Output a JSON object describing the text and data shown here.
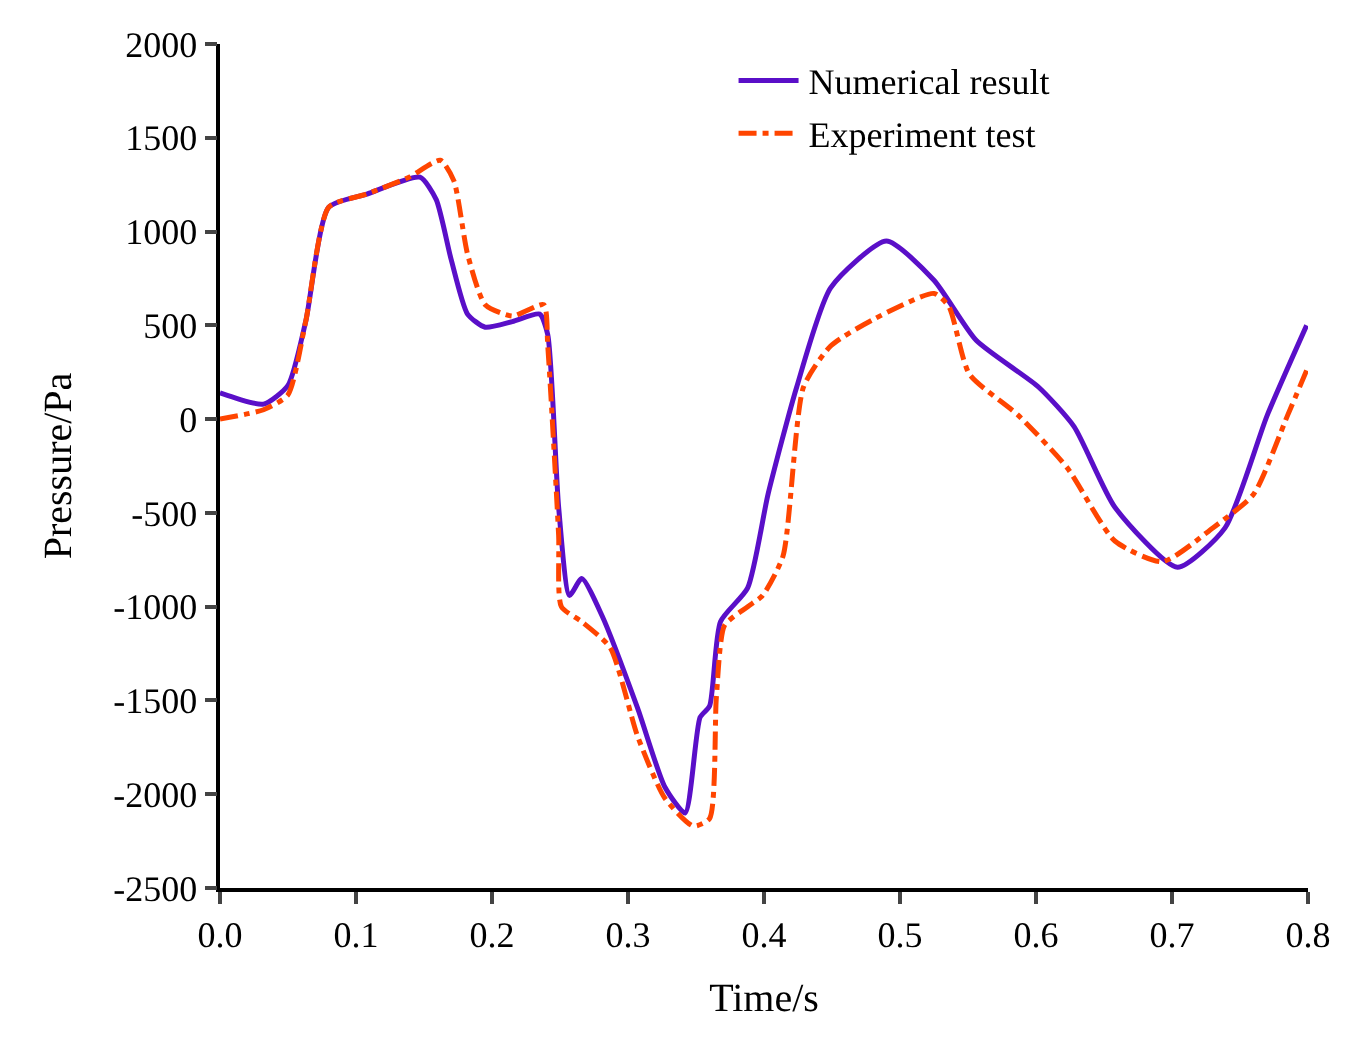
{
  "chart_data": {
    "type": "line",
    "xlabel": "Time/s",
    "ylabel": "Pressure/Pa",
    "xlim": [
      0,
      0.8
    ],
    "xticks": [
      {
        "value": 0,
        "label": "0.0"
      },
      0.1,
      0.2,
      0.3,
      0.4,
      0.5,
      0.6,
      0.7,
      0.8
    ],
    "ylim": [
      -2500,
      2000
    ],
    "yticks": [
      -2500,
      -2000,
      -1500,
      -1000,
      -500,
      0,
      500,
      1000,
      1500,
      2000
    ],
    "legend": "top",
    "marker": "none",
    "series": [
      {
        "name": "Numerical result",
        "color": "#5a0fc8",
        "line_style": "solid",
        "x": [
          0,
          0.032,
          0.05,
          0.063,
          0.08,
          0.108,
          0.147,
          0.159,
          0.17,
          0.182,
          0.195,
          0.215,
          0.235,
          0.241,
          0.249,
          0.257,
          0.266,
          0.281,
          0.307,
          0.327,
          0.342,
          0.353,
          0.36,
          0.368,
          0.388,
          0.403,
          0.424,
          0.449,
          0.49,
          0.525,
          0.556,
          0.602,
          0.628,
          0.658,
          0.704,
          0.739,
          0.77,
          0.799
        ],
        "values": [
          140,
          80,
          180,
          520,
          1130,
          1200,
          1290,
          1170,
          850,
          560,
          490,
          520,
          560,
          450,
          -470,
          -940,
          -850,
          -1050,
          -1540,
          -1960,
          -2100,
          -1590,
          -1530,
          -1080,
          -900,
          -400,
          170,
          700,
          950,
          740,
          420,
          170,
          -40,
          -470,
          -790,
          -580,
          20,
          500
        ]
      },
      {
        "name": "Experiment test",
        "color": "#ff4500",
        "line_style": "dashed",
        "x": [
          0,
          0.032,
          0.05,
          0.063,
          0.08,
          0.108,
          0.139,
          0.162,
          0.172,
          0.182,
          0.195,
          0.215,
          0.238,
          0.241,
          0.249,
          0.251,
          0.266,
          0.287,
          0.307,
          0.327,
          0.348,
          0.36,
          0.365,
          0.371,
          0.388,
          0.399,
          0.414,
          0.429,
          0.449,
          0.48,
          0.525,
          0.536,
          0.551,
          0.587,
          0.623,
          0.658,
          0.693,
          0.73,
          0.76,
          0.785,
          0.799
        ],
        "values": [
          0,
          50,
          130,
          520,
          1130,
          1200,
          1290,
          1380,
          1270,
          880,
          610,
          550,
          610,
          390,
          -620,
          -1000,
          -1080,
          -1220,
          -1690,
          -2020,
          -2170,
          -2130,
          -1480,
          -1100,
          -1000,
          -940,
          -730,
          170,
          390,
          530,
          670,
          600,
          240,
          20,
          -260,
          -650,
          -760,
          -580,
          -400,
          20,
          260
        ]
      }
    ]
  }
}
